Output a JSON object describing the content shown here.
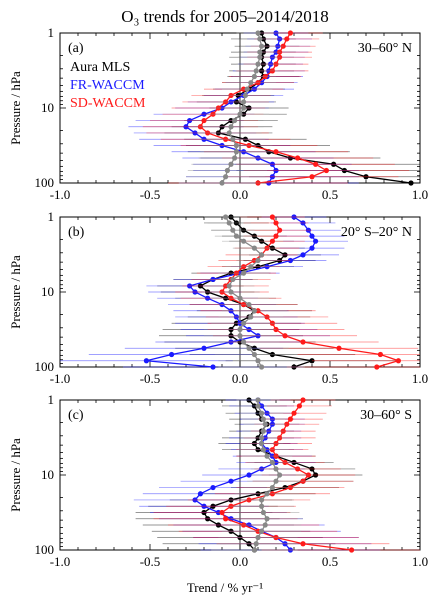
{
  "figure": {
    "title": "O₃ trends for 2005–2014/2018",
    "ylabel": "Pressure / hPa",
    "xlabel": "Trend / % yr⁻¹",
    "legend": [
      {
        "name": "Aura MLS",
        "color": "#000000"
      },
      {
        "name": "FR-WACCM",
        "color": "#1a1aff"
      },
      {
        "name": "SD-WACCM",
        "color": "#ff1a1a"
      }
    ],
    "grey_series_color": "#888888"
  },
  "chart_data": [
    {
      "type": "scatter",
      "panel_label": "(a)",
      "region": "30–60° N",
      "xlim": [
        -1.0,
        1.0
      ],
      "ylim": [
        100,
        1
      ],
      "log_y": true,
      "xticks": [
        "-1.0",
        "-0.5",
        "0.0",
        "0.5",
        "1.0"
      ],
      "yticks": [
        "1",
        "10",
        "100"
      ],
      "pressure": [
        1.0,
        1.2,
        1.5,
        1.8,
        2.1,
        2.6,
        3.2,
        3.8,
        4.6,
        5.6,
        6.8,
        8.3,
        10.0,
        12.1,
        14.7,
        17.8,
        21.5,
        26.1,
        31.6,
        38.3,
        46.4,
        56.2,
        68.1,
        82.5,
        100.0
      ],
      "series": [
        {
          "name": "Aura MLS",
          "color": "#000000",
          "values": [
            0.12,
            0.13,
            0.15,
            0.13,
            0.12,
            0.13,
            0.12,
            0.13,
            0.1,
            0.05,
            -0.01,
            -0.02,
            0.05,
            0.02,
            -0.05,
            -0.1,
            -0.12,
            0.03,
            0.1,
            0.16,
            0.28,
            0.52,
            0.58,
            0.7,
            0.95
          ],
          "errors": [
            0.18,
            0.18,
            0.18,
            0.18,
            0.18,
            0.18,
            0.18,
            0.2,
            0.2,
            0.2,
            0.2,
            0.22,
            0.22,
            0.24,
            0.26,
            0.28,
            0.3,
            0.34,
            0.4,
            0.45,
            0.5,
            0.55,
            0.6,
            0.65,
            0.7
          ]
        },
        {
          "name": "FR-WACCM",
          "color": "#1a1aff",
          "values": [
            0.2,
            0.22,
            0.21,
            0.2,
            0.18,
            0.17,
            0.16,
            0.15,
            0.12,
            0.08,
            0.02,
            -0.05,
            -0.1,
            -0.2,
            -0.28,
            -0.3,
            -0.25,
            -0.2,
            -0.1,
            0.02,
            0.1,
            0.18,
            0.2,
            0.18,
            0.16
          ],
          "errors": [
            0.18,
            0.18,
            0.18,
            0.18,
            0.18,
            0.18,
            0.2,
            0.2,
            0.2,
            0.22,
            0.22,
            0.24,
            0.26,
            0.28,
            0.3,
            0.32,
            0.34,
            0.36,
            0.38,
            0.4,
            0.42,
            0.44,
            0.46,
            0.48,
            0.5
          ]
        },
        {
          "name": "SD-WACCM",
          "color": "#ff1a1a",
          "values": [
            0.28,
            0.26,
            0.24,
            0.22,
            0.22,
            0.2,
            0.18,
            0.14,
            0.1,
            0.02,
            -0.05,
            -0.08,
            -0.12,
            -0.15,
            -0.2,
            -0.22,
            -0.18,
            -0.08,
            0.05,
            0.2,
            0.32,
            0.42,
            0.48,
            0.4,
            0.1
          ],
          "errors": [
            0.18,
            0.18,
            0.18,
            0.18,
            0.18,
            0.18,
            0.2,
            0.2,
            0.2,
            0.22,
            0.22,
            0.24,
            0.26,
            0.28,
            0.3,
            0.32,
            0.34,
            0.36,
            0.38,
            0.4,
            0.42,
            0.44,
            0.46,
            0.48,
            0.5
          ]
        },
        {
          "color": "#888888",
          "values": [
            0.1,
            0.11,
            0.12,
            0.11,
            0.11,
            0.1,
            0.09,
            0.08,
            0.06,
            0.04,
            0.03,
            0.02,
            0.02,
            0.0,
            -0.03,
            -0.05,
            -0.06,
            -0.04,
            -0.02,
            -0.02,
            -0.03,
            -0.05,
            -0.07,
            -0.08,
            -0.1
          ],
          "errors": [
            0.12,
            0.12,
            0.12,
            0.12,
            0.12,
            0.12,
            0.12,
            0.12,
            0.14,
            0.14,
            0.14,
            0.14,
            0.16,
            0.16,
            0.16,
            0.18,
            0.18,
            0.18,
            0.2,
            0.2,
            0.2,
            0.22,
            0.22,
            0.22,
            0.24
          ]
        }
      ]
    },
    {
      "type": "scatter",
      "panel_label": "(b)",
      "region": "20° S–20° N",
      "xlim": [
        -1.0,
        1.0
      ],
      "ylim": [
        100,
        1
      ],
      "log_y": true,
      "xticks": [
        "-1.0",
        "-0.5",
        "0.0",
        "0.5",
        "1.0"
      ],
      "yticks": [
        "1",
        "10",
        "100"
      ],
      "pressure": [
        1.0,
        1.2,
        1.5,
        1.8,
        2.1,
        2.6,
        3.2,
        3.8,
        4.6,
        5.6,
        6.8,
        8.3,
        10.0,
        12.1,
        14.7,
        17.8,
        21.5,
        26.1,
        31.6,
        38.3,
        46.4,
        56.2,
        68.1,
        82.5,
        100.0
      ],
      "series": [
        {
          "name": "Aura MLS",
          "color": "#000000",
          "values": [
            -0.05,
            -0.02,
            0.02,
            0.08,
            0.12,
            0.18,
            0.25,
            0.22,
            0.1,
            -0.05,
            -0.15,
            -0.22,
            -0.18,
            -0.08,
            0.02,
            0.08,
            0.05,
            -0.02,
            -0.05,
            -0.05,
            0.0,
            0.08,
            0.18,
            0.4,
            0.3
          ],
          "errors": [
            0.18,
            0.18,
            0.18,
            0.18,
            0.18,
            0.18,
            0.2,
            0.2,
            0.2,
            0.22,
            0.22,
            0.24,
            0.26,
            0.28,
            0.3,
            0.32,
            0.34,
            0.36,
            0.38,
            0.4,
            0.42,
            0.44,
            0.46,
            0.48,
            0.5
          ]
        },
        {
          "name": "FR-WACCM",
          "color": "#1a1aff",
          "values": [
            0.3,
            0.35,
            0.38,
            0.4,
            0.42,
            0.4,
            0.35,
            0.28,
            0.15,
            0.0,
            -0.15,
            -0.28,
            -0.25,
            -0.18,
            -0.1,
            -0.05,
            -0.02,
            0.0,
            0.05,
            0.1,
            -0.05,
            -0.2,
            -0.38,
            -0.52,
            -0.15
          ],
          "errors": [
            0.18,
            0.18,
            0.18,
            0.18,
            0.18,
            0.18,
            0.2,
            0.2,
            0.2,
            0.22,
            0.22,
            0.24,
            0.26,
            0.28,
            0.3,
            0.32,
            0.34,
            0.36,
            0.38,
            0.4,
            0.42,
            0.44,
            0.46,
            0.48,
            0.5
          ]
        },
        {
          "name": "SD-WACCM",
          "color": "#ff1a1a",
          "values": [
            0.18,
            0.2,
            0.22,
            0.2,
            0.18,
            0.15,
            0.12,
            0.08,
            0.02,
            -0.02,
            -0.05,
            -0.08,
            -0.1,
            -0.05,
            0.02,
            0.1,
            0.15,
            0.18,
            0.2,
            0.25,
            0.35,
            0.55,
            0.78,
            0.88,
            0.76
          ],
          "errors": [
            0.18,
            0.18,
            0.18,
            0.18,
            0.18,
            0.18,
            0.2,
            0.2,
            0.2,
            0.22,
            0.22,
            0.24,
            0.26,
            0.28,
            0.3,
            0.32,
            0.34,
            0.36,
            0.38,
            0.4,
            0.42,
            0.44,
            0.46,
            0.48,
            0.5
          ]
        },
        {
          "color": "#888888",
          "values": [
            -0.08,
            -0.06,
            -0.04,
            -0.02,
            0.02,
            0.08,
            0.12,
            0.1,
            0.06,
            0.02,
            -0.04,
            -0.06,
            -0.05,
            0.0,
            0.05,
            0.08,
            0.06,
            0.02,
            0.0,
            0.0,
            0.02,
            0.05,
            0.08,
            0.1,
            0.12
          ],
          "errors": [
            0.12,
            0.12,
            0.12,
            0.12,
            0.12,
            0.12,
            0.12,
            0.12,
            0.14,
            0.14,
            0.14,
            0.14,
            0.16,
            0.16,
            0.16,
            0.18,
            0.18,
            0.18,
            0.2,
            0.2,
            0.2,
            0.22,
            0.22,
            0.22,
            0.24
          ]
        }
      ]
    },
    {
      "type": "scatter",
      "panel_label": "(c)",
      "region": "30–60° S",
      "xlim": [
        -1.0,
        1.0
      ],
      "ylim": [
        100,
        1
      ],
      "log_y": true,
      "xticks": [
        "-1.0",
        "-0.5",
        "0.0",
        "0.5",
        "1.0"
      ],
      "yticks": [
        "1",
        "10",
        "100"
      ],
      "pressure": [
        1.0,
        1.2,
        1.5,
        1.8,
        2.1,
        2.6,
        3.2,
        3.8,
        4.6,
        5.6,
        6.8,
        8.3,
        10.0,
        12.1,
        14.7,
        17.8,
        21.5,
        26.1,
        31.6,
        38.3,
        46.4,
        56.2,
        68.1,
        82.5,
        100.0
      ],
      "series": [
        {
          "name": "Aura MLS",
          "color": "#000000",
          "values": [
            0.05,
            0.08,
            0.1,
            0.12,
            0.15,
            0.12,
            0.1,
            0.08,
            0.1,
            0.2,
            0.3,
            0.4,
            0.42,
            0.35,
            0.25,
            0.1,
            -0.05,
            -0.15,
            -0.2,
            -0.18,
            -0.12,
            -0.05,
            0.0,
            0.05,
            0.08
          ],
          "errors": [
            0.18,
            0.18,
            0.18,
            0.18,
            0.18,
            0.18,
            0.2,
            0.2,
            0.2,
            0.22,
            0.22,
            0.24,
            0.26,
            0.28,
            0.3,
            0.32,
            0.34,
            0.36,
            0.38,
            0.4,
            0.42,
            0.44,
            0.46,
            0.48,
            0.5
          ]
        },
        {
          "name": "FR-WACCM",
          "color": "#1a1aff",
          "values": [
            0.1,
            0.12,
            0.15,
            0.18,
            0.18,
            0.16,
            0.14,
            0.12,
            0.15,
            0.18,
            0.2,
            0.12,
            0.05,
            -0.05,
            -0.15,
            -0.22,
            -0.25,
            -0.2,
            -0.12,
            -0.05,
            0.05,
            0.12,
            0.2,
            0.25,
            0.28
          ],
          "errors": [
            0.18,
            0.18,
            0.18,
            0.18,
            0.18,
            0.18,
            0.2,
            0.2,
            0.2,
            0.22,
            0.22,
            0.24,
            0.26,
            0.28,
            0.3,
            0.32,
            0.34,
            0.36,
            0.38,
            0.4,
            0.42,
            0.44,
            0.46,
            0.48,
            0.5
          ]
        },
        {
          "name": "SD-WACCM",
          "color": "#ff1a1a",
          "values": [
            0.35,
            0.33,
            0.3,
            0.28,
            0.26,
            0.24,
            0.22,
            0.2,
            0.18,
            0.2,
            0.25,
            0.32,
            0.38,
            0.35,
            0.28,
            0.18,
            0.05,
            -0.05,
            -0.1,
            -0.08,
            0.02,
            0.1,
            0.2,
            0.35,
            0.62
          ],
          "errors": [
            0.18,
            0.18,
            0.18,
            0.18,
            0.18,
            0.18,
            0.2,
            0.2,
            0.2,
            0.22,
            0.22,
            0.24,
            0.26,
            0.28,
            0.3,
            0.32,
            0.34,
            0.36,
            0.38,
            0.4,
            0.42,
            0.44,
            0.46,
            0.48,
            0.5
          ]
        },
        {
          "color": "#888888",
          "values": [
            0.1,
            0.1,
            0.12,
            0.13,
            0.14,
            0.13,
            0.12,
            0.12,
            0.13,
            0.15,
            0.18,
            0.2,
            0.22,
            0.2,
            0.18,
            0.15,
            0.12,
            0.12,
            0.13,
            0.15,
            0.14,
            0.12,
            0.1,
            0.09,
            0.08
          ],
          "errors": [
            0.12,
            0.12,
            0.12,
            0.12,
            0.12,
            0.12,
            0.12,
            0.12,
            0.14,
            0.14,
            0.14,
            0.14,
            0.16,
            0.16,
            0.16,
            0.18,
            0.18,
            0.18,
            0.2,
            0.2,
            0.2,
            0.22,
            0.22,
            0.22,
            0.24
          ]
        }
      ]
    }
  ]
}
